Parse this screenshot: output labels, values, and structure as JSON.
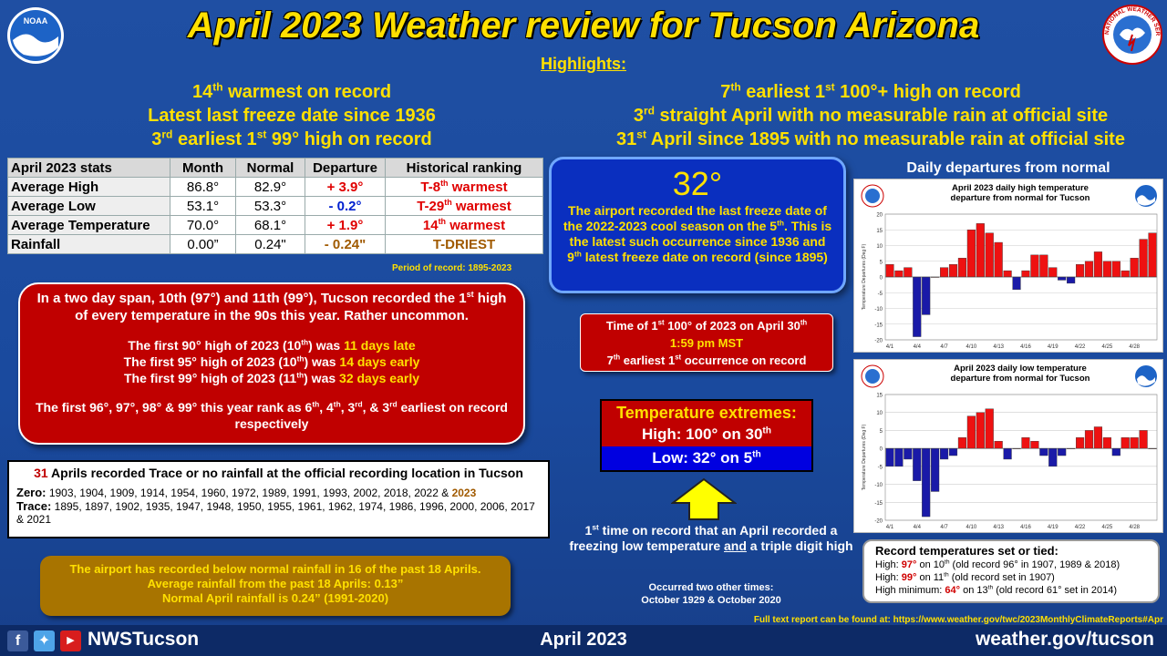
{
  "header": {
    "title": "April 2023 Weather review for Tucson Arizona",
    "highlights_label": "Highlights:",
    "noaa_logo_text": "NOAA",
    "nws_seal_text": "NATIONAL WEATHER SERVICE"
  },
  "highlights_left": [
    {
      "pre": "14",
      "sup": "th",
      "post": " warmest on record"
    },
    {
      "pre": "Latest last freeze date since 1936",
      "sup": "",
      "post": ""
    },
    {
      "pre": "3",
      "sup": "rd",
      "post": " earliest 1"
    },
    {
      "pre": "",
      "sup": "st",
      "post": " 99° high on record"
    }
  ],
  "highlights_right": [
    {
      "a": "7",
      "as": "th",
      "b": " earliest 1",
      "bs": "st",
      "c": " 100°+ high on record"
    },
    {
      "a": "3",
      "as": "rd",
      "b": " straight April with no measurable rain at official site",
      "bs": "",
      "c": ""
    },
    {
      "a": "31",
      "as": "st",
      "b": " April since 1895 with no measurable rain at official site",
      "bs": "",
      "c": ""
    }
  ],
  "stats_table": {
    "headers": [
      "April 2023 stats",
      "Month",
      "Normal",
      "Departure",
      "Historical ranking"
    ],
    "rows": [
      {
        "label": "Average High",
        "month": "86.8°",
        "normal": "82.9°",
        "departure": "+ 3.9°",
        "rank_pre": "T-8",
        "rank_sup": "th",
        "rank_post": " warmest"
      },
      {
        "label": "Average Low",
        "month": "53.1°",
        "normal": "53.3°",
        "departure": "- 0.2°",
        "rank_pre": "T-29",
        "rank_sup": "th",
        "rank_post": " warmest"
      },
      {
        "label": "Average Temperature",
        "month": "70.0°",
        "normal": "68.1°",
        "departure": "+ 1.9°",
        "rank_pre": "14",
        "rank_sup": "th",
        "rank_post": " warmest"
      },
      {
        "label": "Rainfall",
        "month": "0.00”",
        "normal": "0.24\"",
        "departure": "- 0.24\"",
        "rank_pre": "T-DRIEST",
        "rank_sup": "",
        "rank_post": ""
      }
    ],
    "period_of_record": "Period of record: 1895-2023"
  },
  "red_box": {
    "intro_a": "In a two day span, 10th (97°) and 11th (99°), Tucson recorded the 1",
    "intro_sup": "st",
    "intro_b": " high of every temperature in the 90s this year. Rather uncommon.",
    "lines": [
      {
        "a": "The first 90° high of 2023 (10",
        "s": "th",
        "b": ") was ",
        "hl": "11 days late"
      },
      {
        "a": "The first 95° high of 2023 (10",
        "s": "th",
        "b": ") was ",
        "hl": "14 days early"
      },
      {
        "a": "The first 99° high of 2023 (11",
        "s": "th",
        "b": ") was ",
        "hl": "32 days early"
      }
    ],
    "rank_a": "The first 96°, 97°, 98° & 99° this year rank as 6",
    "rank_s1": "th",
    "rank_b": ", 4",
    "rank_s2": "th",
    "rank_c": ", 3",
    "rank_s3": "rd",
    "rank_d": ", & 3",
    "rank_s4": "rd",
    "rank_e": " earliest on record respectively"
  },
  "trace_box": {
    "count": "31",
    "heading": " Aprils recorded Trace or no rainfall at the official recording location in Tucson",
    "zero_label": "Zero:",
    "zero_years": " 1903, 1904, 1909, 1914, 1954, 1960, 1972, 1989, 1991, 1993, 2002, 2018, 2022 & ",
    "zero_current": "2023",
    "trace_label": "Trace:",
    "trace_years": " 1895, 1897, 1902, 1935, 1947, 1948, 1950, 1955, 1961, 1962, 1974, 1986, 1996, 2000, 2006, 2017 & 2021"
  },
  "brown_box": {
    "line1": "The airport has recorded below normal rainfall in 16 of the past 18 Aprils.",
    "line2": "Average rainfall from the past 18 Aprils: 0.13”",
    "line3": "Normal April rainfall is 0.24” (1991-2020)"
  },
  "freeze_box": {
    "temp": "32°",
    "text_a": "The airport recorded the last freeze date of the 2022-2023 cool season on the 5",
    "text_s1": "th",
    "text_b": ". This is the latest such occurrence since 1936 and 9",
    "text_s2": "th",
    "text_c": " latest freeze date on record (since 1895)"
  },
  "box_100": {
    "line1_a": "Time of 1",
    "line1_s": "st",
    "line1_b": " 100° of 2023 on April 30",
    "line1_s2": "th",
    "time": "1:59 pm MST",
    "line3_a": "7",
    "line3_s": "th",
    "line3_b": " earliest 1",
    "line3_s2": "st",
    "line3_c": " occurrence on record"
  },
  "extremes": {
    "heading": "Temperature extremes:",
    "high_a": "High: 100° on 30",
    "high_s": "th",
    "low_a": "Low: 32° on 5",
    "low_s": "th"
  },
  "first_time": {
    "a": "1",
    "s": "st",
    "b": " time on record that an April recorded a freezing low temperature ",
    "and": "and",
    "c": " a triple digit high",
    "occurred_1": "Occurred two other times:",
    "occurred_2": "October 1929 & October 2020"
  },
  "daily_label": "Daily departures from normal",
  "chart_data": [
    {
      "type": "bar",
      "title": "April 2023 daily high temperature departure from normal for Tucson",
      "ylabel": "Temperature Departures (Deg F)",
      "xlabel": "",
      "ylim": [
        -20,
        20
      ],
      "yticks": [
        -20,
        -15,
        -10,
        -5,
        0,
        5,
        10,
        15,
        20
      ],
      "xtick_labels": [
        "4/1",
        "4/4",
        "4/7",
        "4/10",
        "4/13",
        "4/16",
        "4/19",
        "4/22",
        "4/25",
        "4/28"
      ],
      "xtick_days": [
        1,
        4,
        7,
        10,
        13,
        16,
        19,
        22,
        25,
        28
      ],
      "categories": [
        1,
        2,
        3,
        4,
        5,
        6,
        7,
        8,
        9,
        10,
        11,
        12,
        13,
        14,
        15,
        16,
        17,
        18,
        19,
        20,
        21,
        22,
        23,
        24,
        25,
        26,
        27,
        28,
        29,
        30
      ],
      "values": [
        4,
        2,
        3,
        -19,
        -12,
        0,
        3,
        4,
        6,
        15,
        17,
        14,
        11,
        2,
        -4,
        2,
        7,
        7,
        3,
        -1,
        -2,
        4,
        5,
        8,
        5,
        5,
        2,
        6,
        12,
        14
      ],
      "pos_color": "#ee1111",
      "neg_color": "#1a1aa8"
    },
    {
      "type": "bar",
      "title": "April 2023 daily low temperature departure from normal for Tucson",
      "ylabel": "Temperature Departures (Deg F)",
      "xlabel": "",
      "ylim": [
        -20,
        15
      ],
      "yticks": [
        -20,
        -15,
        -10,
        -5,
        0,
        5,
        10,
        15
      ],
      "xtick_labels": [
        "4/1",
        "4/4",
        "4/7",
        "4/10",
        "4/13",
        "4/16",
        "4/19",
        "4/22",
        "4/25",
        "4/28"
      ],
      "xtick_days": [
        1,
        4,
        7,
        10,
        13,
        16,
        19,
        22,
        25,
        28
      ],
      "categories": [
        1,
        2,
        3,
        4,
        5,
        6,
        7,
        8,
        9,
        10,
        11,
        12,
        13,
        14,
        15,
        16,
        17,
        18,
        19,
        20,
        21,
        22,
        23,
        24,
        25,
        26,
        27,
        28,
        29,
        30
      ],
      "values": [
        -5,
        -5,
        -3,
        -9,
        -19,
        -12,
        -3,
        -2,
        3,
        9,
        10,
        11,
        2,
        -3,
        0,
        3,
        2,
        -2,
        -5,
        -2,
        0,
        3,
        5,
        6,
        3,
        -2,
        3,
        3,
        5,
        0
      ],
      "pos_color": "#ee1111",
      "neg_color": "#1a1aa8"
    }
  ],
  "record_box": {
    "heading": "Record temperatures set or tied:",
    "r1_a": "High: ",
    "r1_v": "97°",
    "r1_b": " on 10",
    "r1_s": "th",
    "r1_c": " (old record 96° in 1907, 1989 & 2018)",
    "r2_a": "High: ",
    "r2_v": "99°",
    "r2_b": " on 11",
    "r2_s": "th",
    "r2_c": " (old record set in 1907)",
    "r3_a": "High minimum: ",
    "r3_v": "64°",
    "r3_b": " on 13",
    "r3_s": "th",
    "r3_c": " (old record 61° set in 2014)"
  },
  "full_text": "Full text report can be found at: https://www.weather.gov/twc/2023MonthlyClimateReports#Apr",
  "footer": {
    "handle": "NWSTucson",
    "date": "April 2023",
    "url": "weather.gov/tucson",
    "icons": [
      "facebook-icon",
      "twitter-icon",
      "youtube-icon"
    ]
  },
  "colors": {
    "background": "#1f4fa3",
    "title": "#ffe000",
    "red_box": "#c00000",
    "freeze_box": "#0a2fbf",
    "brown_box": "#a87400"
  }
}
